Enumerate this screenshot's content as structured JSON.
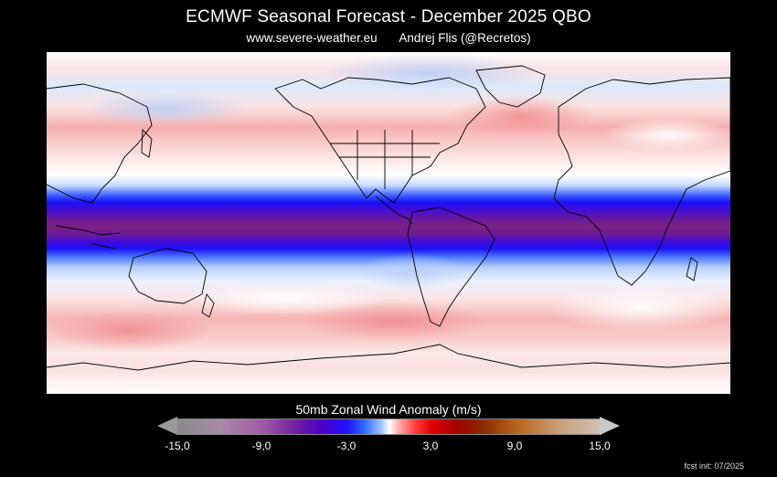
{
  "header": {
    "title": "ECMWF Seasonal Forecast - December 2025 QBO",
    "website": "www.severe-weather.eu",
    "author": "Andrej Flis (@Recretos)"
  },
  "legend": {
    "title": "50mb Zonal Wind Anomaly (m/s)",
    "ticks": [
      "-15,0",
      "-9,0",
      "-3,0",
      "3,0",
      "9,0",
      "15,0"
    ]
  },
  "footer": {
    "init": "fcst init: 07/2025"
  },
  "colors": {
    "strong_easterly": "#7a1a8c",
    "easterly": "#1f12ff",
    "westerly": "#f08080",
    "neutral": "#ffffff",
    "coastline": "#000000"
  },
  "map_data": {
    "field": "50mb zonal wind anomaly",
    "units": "m/s",
    "range": [
      -15,
      15
    ],
    "equatorial_easterly_band": {
      "latitude": 0,
      "anomaly": -12
    }
  }
}
